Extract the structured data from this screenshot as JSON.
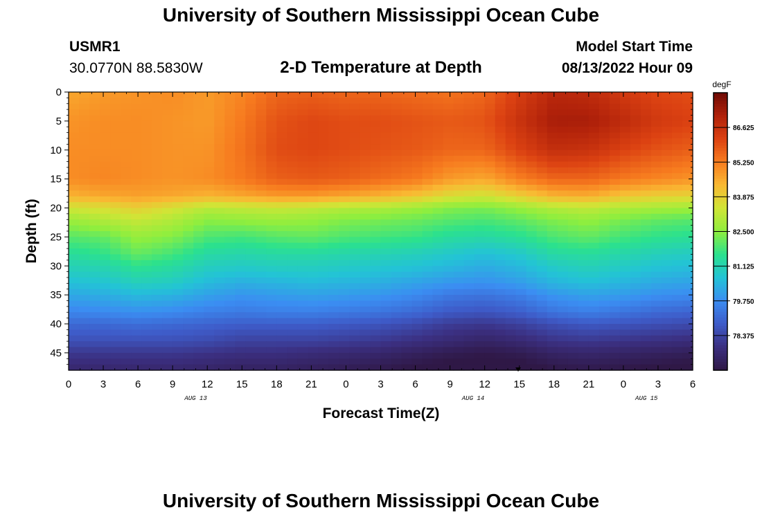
{
  "page_title": "University of Southern Mississippi Ocean Cube",
  "footer_title": "University of Southern Mississippi Ocean Cube",
  "station": {
    "id": "USMR1",
    "coords": "30.0770N  88.5830W"
  },
  "model": {
    "label": "Model Start Time",
    "start": "08/13/2022 Hour 09"
  },
  "chart_data": {
    "type": "heatmap",
    "title": "2-D Temperature at Depth",
    "xlabel": "Forecast Time(Z)",
    "ylabel": "Depth (ft)",
    "x_range_hours": [
      0,
      54
    ],
    "y_range_ft": [
      0,
      48
    ],
    "x_tick_labels": [
      "0",
      "3",
      "6",
      "9",
      "12",
      "15",
      "18",
      "21",
      "0",
      "3",
      "6",
      "9",
      "12",
      "15",
      "18",
      "21",
      "0",
      "3",
      "6"
    ],
    "y_tick_values": [
      0,
      5,
      10,
      15,
      20,
      25,
      30,
      35,
      40,
      45
    ],
    "day_labels": [
      {
        "label": "AUG 13",
        "hour": 11
      },
      {
        "label": "AUG 14",
        "hour": 35
      },
      {
        "label": "AUG 15",
        "hour": 50
      }
    ],
    "colorbar": {
      "units": "degF",
      "min": 77.0,
      "max": 88.0,
      "ticks": [
        "86.625",
        "85.250",
        "83.875",
        "82.500",
        "81.125",
        "79.750",
        "78.375"
      ],
      "colors": [
        "#2f1846",
        "#3b2f80",
        "#3e5bc8",
        "#3b8df2",
        "#23c3d6",
        "#2be18e",
        "#8fee3e",
        "#d0e536",
        "#f9b933",
        "#f77c1f",
        "#dc4212",
        "#b0210a",
        "#6e0b05"
      ]
    },
    "temperature_grid_degF": {
      "depths_ft": [
        0,
        5,
        10,
        15,
        18,
        20,
        22,
        25,
        28,
        30,
        33,
        35,
        38,
        40,
        43,
        45,
        48
      ],
      "hours": [
        0,
        3,
        6,
        9,
        12,
        15,
        18,
        21,
        24,
        27,
        30,
        33,
        36,
        39,
        42,
        45,
        48,
        51,
        54
      ],
      "values": [
        [
          84.6,
          84.8,
          84.9,
          85.0,
          84.8,
          85.1,
          85.6,
          85.7,
          85.6,
          85.6,
          85.5,
          85.4,
          85.6,
          86.3,
          86.9,
          86.8,
          86.4,
          86.1,
          86.0
        ],
        [
          84.9,
          85.0,
          85.0,
          84.9,
          84.8,
          85.3,
          85.9,
          86.1,
          86.0,
          86.0,
          85.9,
          85.8,
          85.9,
          86.6,
          87.2,
          87.2,
          86.8,
          86.4,
          86.2
        ],
        [
          85.0,
          85.0,
          85.0,
          84.9,
          84.9,
          85.4,
          86.0,
          86.1,
          86.0,
          85.9,
          85.8,
          85.6,
          85.6,
          86.2,
          86.7,
          86.6,
          86.2,
          85.9,
          85.7
        ],
        [
          85.0,
          85.1,
          85.0,
          84.9,
          85.0,
          85.3,
          85.7,
          85.8,
          85.7,
          85.5,
          85.3,
          84.8,
          84.6,
          85.2,
          85.6,
          85.6,
          85.3,
          85.1,
          84.9
        ],
        [
          84.4,
          84.6,
          84.7,
          84.6,
          84.4,
          84.6,
          84.8,
          84.8,
          84.6,
          84.4,
          84.1,
          83.6,
          83.4,
          83.9,
          84.4,
          84.5,
          84.1,
          83.9,
          83.8
        ],
        [
          83.4,
          83.6,
          83.9,
          83.5,
          83.1,
          83.2,
          83.3,
          83.2,
          83.0,
          82.9,
          82.7,
          82.4,
          82.3,
          82.6,
          83.0,
          83.2,
          82.9,
          82.8,
          82.7
        ],
        [
          82.7,
          83.0,
          83.3,
          83.0,
          82.5,
          82.6,
          82.7,
          82.6,
          82.4,
          82.3,
          82.2,
          82.0,
          81.9,
          82.1,
          82.4,
          82.6,
          82.3,
          82.1,
          82.0
        ],
        [
          82.0,
          82.1,
          82.6,
          82.4,
          81.9,
          81.8,
          82.0,
          82.1,
          81.9,
          81.8,
          81.7,
          81.4,
          81.3,
          81.5,
          81.9,
          82.1,
          81.8,
          81.6,
          81.5
        ],
        [
          81.4,
          81.6,
          82.1,
          81.8,
          81.3,
          81.2,
          81.3,
          81.3,
          81.2,
          81.1,
          81.0,
          80.8,
          80.6,
          80.8,
          81.3,
          81.4,
          81.2,
          81.0,
          80.9
        ],
        [
          81.1,
          81.2,
          81.6,
          81.4,
          81.0,
          80.9,
          81.0,
          81.0,
          80.9,
          80.8,
          80.7,
          80.5,
          80.3,
          80.5,
          80.9,
          81.1,
          80.9,
          80.7,
          80.6
        ],
        [
          80.6,
          80.7,
          81.0,
          80.9,
          80.5,
          80.3,
          80.4,
          80.5,
          80.4,
          80.3,
          80.1,
          79.9,
          79.8,
          80.0,
          80.4,
          80.6,
          80.4,
          80.2,
          80.1
        ],
        [
          80.2,
          80.3,
          80.5,
          80.4,
          80.1,
          79.9,
          80.0,
          80.1,
          80.0,
          79.9,
          79.7,
          79.4,
          79.3,
          79.5,
          79.9,
          80.1,
          80.0,
          79.8,
          79.7
        ],
        [
          79.6,
          79.7,
          79.8,
          79.7,
          79.5,
          79.4,
          79.5,
          79.5,
          79.4,
          79.3,
          79.1,
          78.8,
          78.7,
          78.9,
          79.3,
          79.5,
          79.3,
          79.1,
          79.0
        ],
        [
          79.1,
          79.1,
          79.2,
          79.1,
          79.0,
          78.9,
          78.9,
          78.9,
          78.8,
          78.7,
          78.5,
          78.2,
          78.1,
          78.3,
          78.6,
          78.8,
          78.7,
          78.6,
          78.5
        ],
        [
          78.6,
          78.6,
          78.6,
          78.6,
          78.5,
          78.3,
          78.3,
          78.3,
          78.2,
          78.1,
          77.9,
          77.7,
          77.5,
          77.7,
          78.0,
          78.1,
          78.0,
          77.9,
          77.8
        ],
        [
          78.1,
          78.1,
          78.1,
          78.1,
          78.0,
          77.9,
          77.9,
          77.8,
          77.7,
          77.6,
          77.4,
          77.2,
          77.1,
          77.2,
          77.5,
          77.6,
          77.5,
          77.4,
          77.3
        ],
        [
          77.6,
          77.6,
          77.6,
          77.6,
          77.5,
          77.4,
          77.4,
          77.3,
          77.2,
          77.1,
          76.9,
          76.8,
          76.7,
          76.8,
          77.0,
          77.1,
          77.0,
          76.9,
          76.8
        ]
      ]
    }
  }
}
